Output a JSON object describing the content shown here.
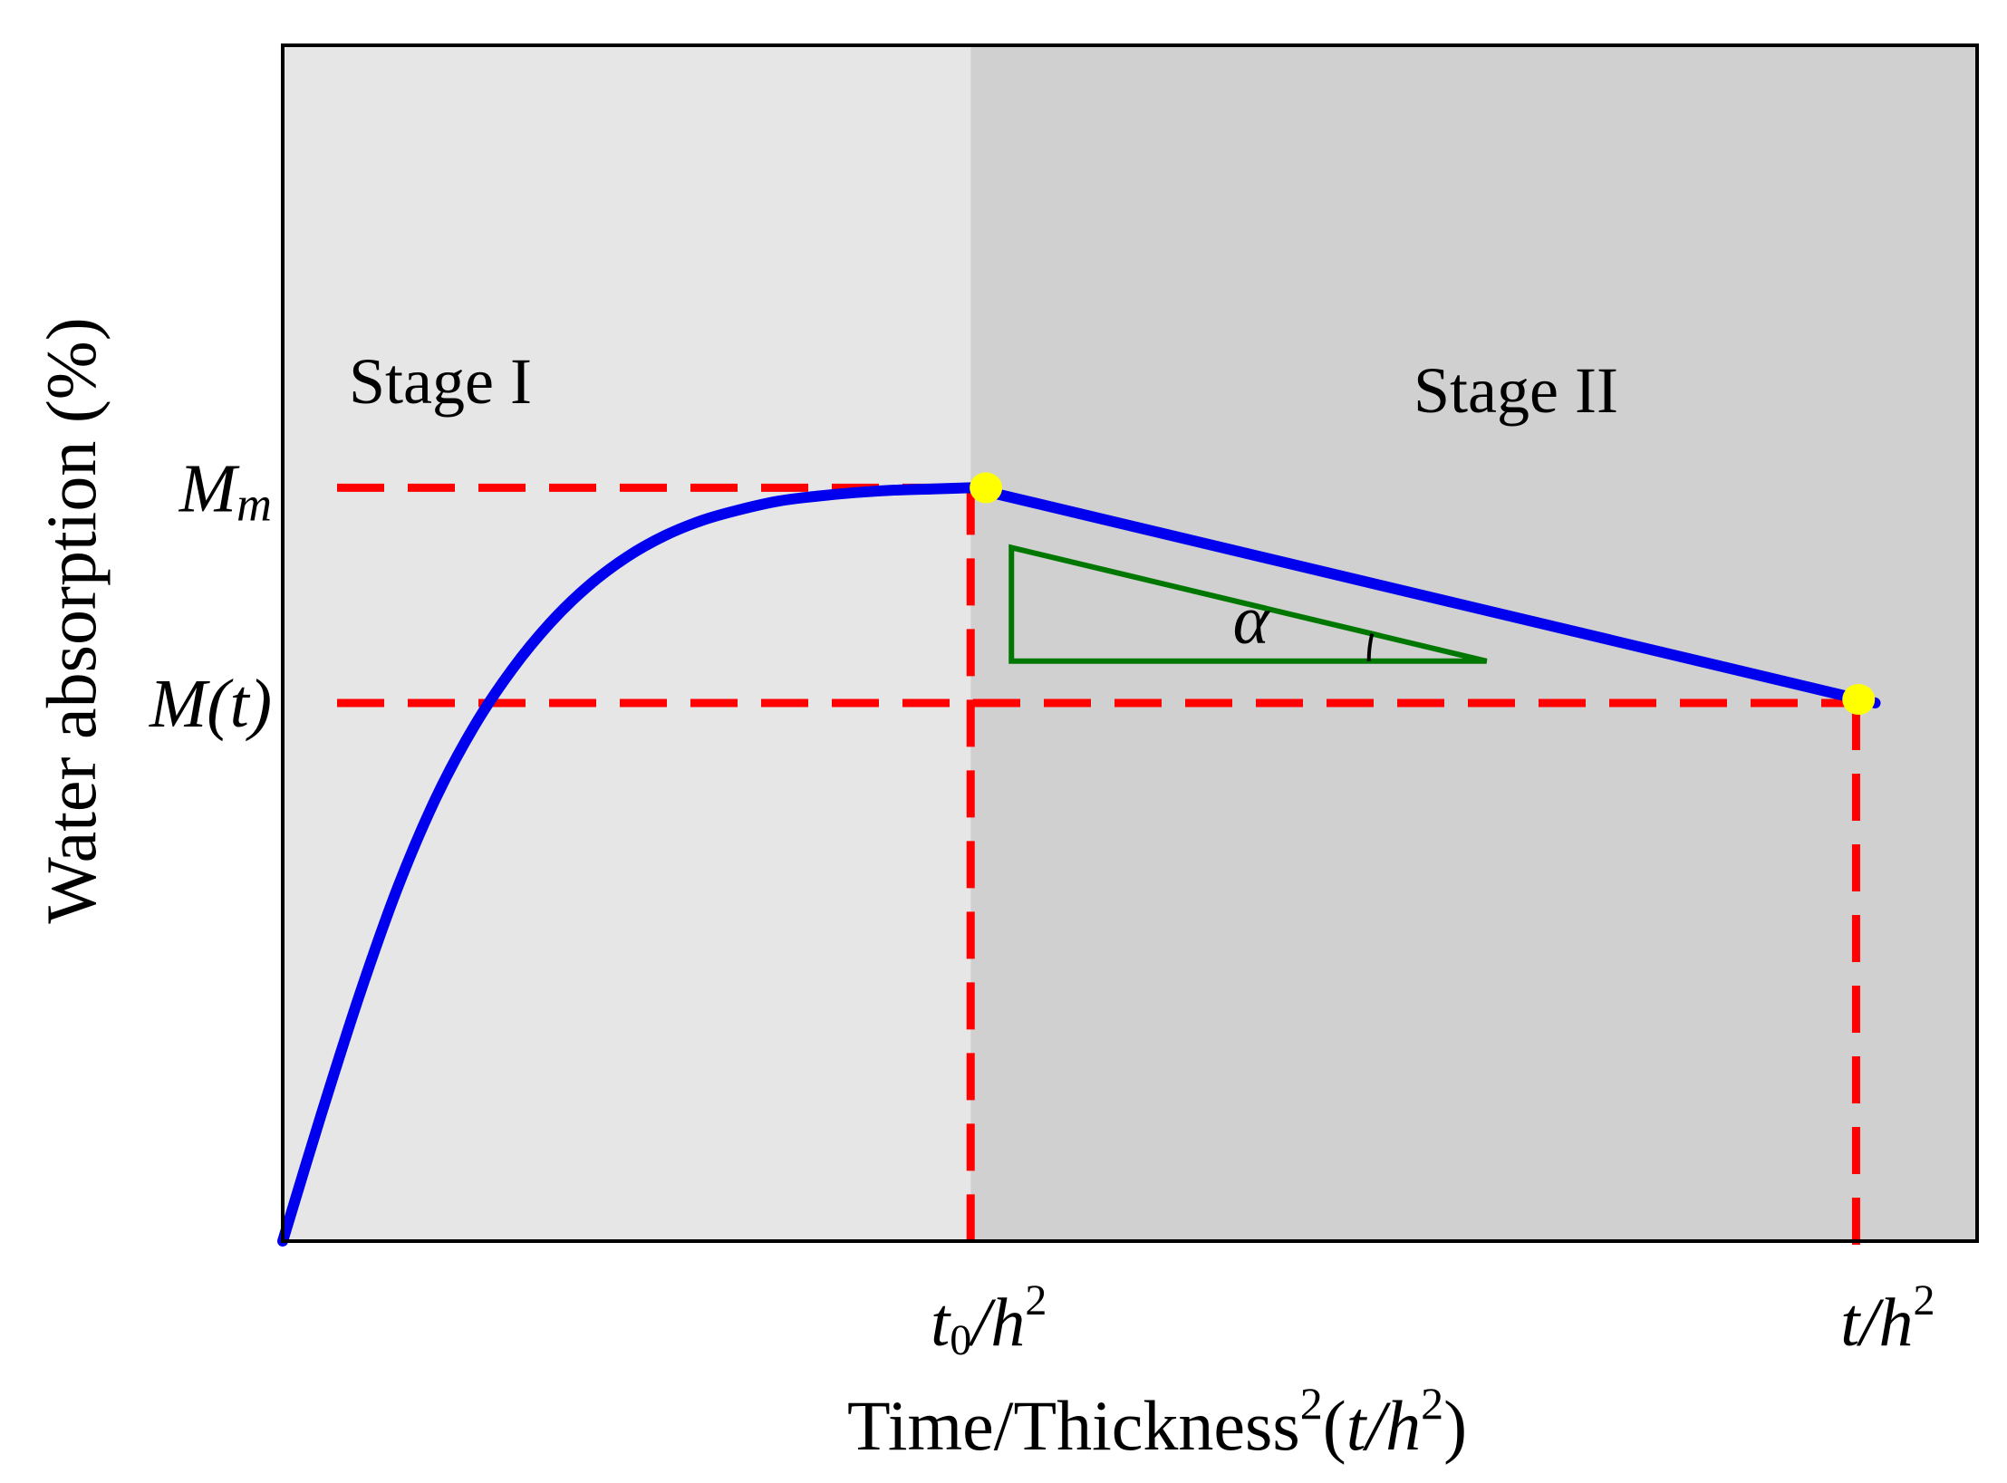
{
  "chart_data": {
    "type": "line",
    "title": "",
    "xlabel": {
      "prefix": "Time/Thickness",
      "sup1": "2",
      "open": "(",
      "var": "t/h",
      "sup2": "2",
      "close": ")"
    },
    "ylabel": "Water absorption (%)",
    "x_ticks": [
      {
        "x": 0.54,
        "main": "t",
        "sub": "0",
        "mid": "/h",
        "sup": "2"
      },
      {
        "x": 1.235,
        "main": "t",
        "sub": "",
        "mid": "/h",
        "sup": "2"
      }
    ],
    "y_ticks": [
      {
        "y": 0.63,
        "main": "M",
        "sub": "m",
        "tail": ""
      },
      {
        "y": 0.45,
        "main": "M",
        "sub": "",
        "tail": "(t)"
      }
    ],
    "stages": [
      {
        "label": "Stage I",
        "x_start": 0.0,
        "x_end": 0.54,
        "color": "#e6e6e6"
      },
      {
        "label": "Stage II",
        "x_start": 0.54,
        "x_end": 1.33,
        "color": "#d0d0d0"
      }
    ],
    "xlim": [
      0,
      1.33
    ],
    "ylim": [
      0,
      1.0
    ],
    "series": [
      {
        "color": "#0000ee",
        "x": [
          0.0,
          0.03,
          0.06,
          0.09,
          0.12,
          0.15,
          0.18,
          0.21,
          0.24,
          0.27,
          0.3,
          0.33,
          0.36,
          0.39,
          0.42,
          0.45,
          0.48,
          0.51,
          0.54,
          1.25
        ],
        "y": [
          0.0,
          0.105,
          0.205,
          0.295,
          0.37,
          0.43,
          0.478,
          0.517,
          0.548,
          0.572,
          0.59,
          0.603,
          0.612,
          0.619,
          0.623,
          0.626,
          0.628,
          0.629,
          0.63,
          0.45
        ]
      }
    ],
    "markers": [
      {
        "x": 0.552,
        "y": 0.63,
        "color": "#ffff00"
      },
      {
        "x": 1.237,
        "y": 0.453,
        "color": "#ffff00"
      }
    ],
    "guides": {
      "color": "#ff0000",
      "points": [
        {
          "x": 0.54,
          "y": 0.63
        },
        {
          "x": 1.235,
          "y": 0.45
        }
      ]
    },
    "slope_triangle": {
      "color": "#007700",
      "x_left": 0.572,
      "x_right": 0.945,
      "y_top": 0.58,
      "y_bottom": 0.485,
      "angle_label": "α"
    }
  }
}
